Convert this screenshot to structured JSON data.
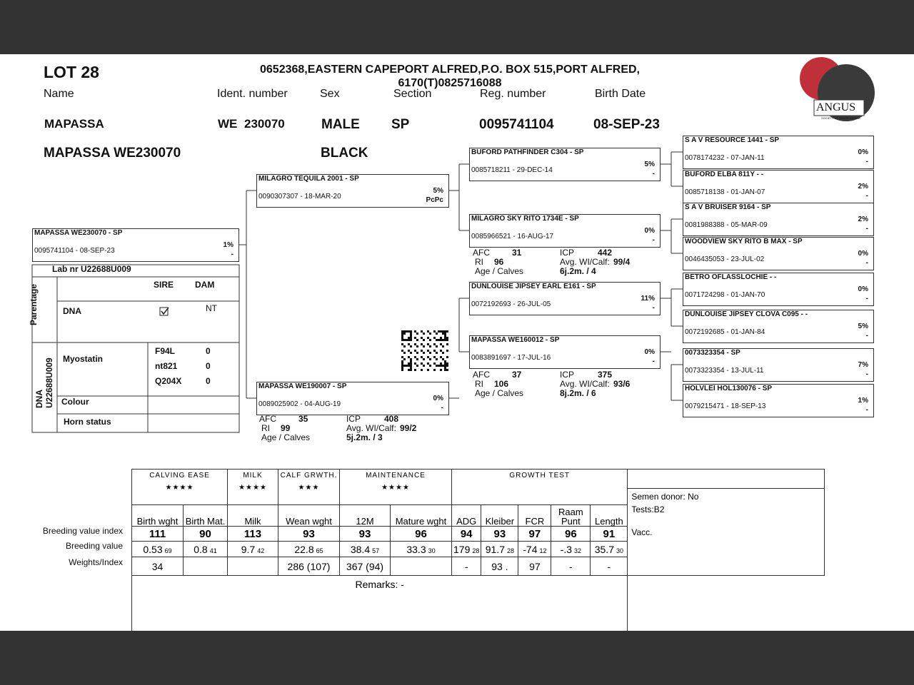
{
  "header": {
    "lot": "LOT 28",
    "address": "0652368,EASTERN CAPEPORT ALFRED,P.O. BOX 515,PORT ALFRED, 6170(T)0825716088",
    "labels": [
      "Name",
      "Ident. number",
      "Sex",
      "Section",
      "Reg. number",
      "Birth Date"
    ]
  },
  "animal": {
    "name": "MAPASSA",
    "ident_prefix": "WE",
    "ident": "230070",
    "sex": "MALE",
    "section": "SP",
    "reg": "0095741104",
    "birth": "08-SEP-23",
    "full_name": "MAPASSA WE230070",
    "colour": "BLACK"
  },
  "logo": {
    "text": "ANGUS",
    "sub": "SOCIETY OF SOUTH AFRICA"
  },
  "pedigree": {
    "boxes": [
      {
        "name": "MAPASSA WE230070 - SP",
        "reg": "0095741104 -  08-SEP-23",
        "pct": "1%",
        "flag": "-"
      },
      {
        "name": "MILAGRO TEQUILA 2001 - SP",
        "reg": "0090307307 - 18-MAR-20",
        "pct": "5%",
        "flag": "PcPc"
      },
      {
        "name": "MAPASSA WE190007 - SP",
        "reg": "0089025902 - 04-AUG-19",
        "pct": "0%",
        "flag": "-"
      },
      {
        "name": "BUFORD PATHFINDER C304 - SP",
        "reg": "0085718211 - 29-DEC-14",
        "pct": "5%",
        "flag": "-"
      },
      {
        "name": "MILAGRO SKY RITO 1734E - SP",
        "reg": "0085966521 - 16-AUG-17",
        "pct": "0%",
        "flag": "-"
      },
      {
        "name": "DUNLOUISE JIPSEY EARL E161 - SP",
        "reg": "0072192693 - 26-JUL-05",
        "pct": "11%",
        "flag": "-"
      },
      {
        "name": "MAPASSA WE160012 - SP",
        "reg": "0083891697 - 17-JUL-16",
        "pct": "0%",
        "flag": "-"
      },
      {
        "name": "S A V RESOURCE 1441 - SP",
        "reg": "0078174232 - 07-JAN-11",
        "pct": "0%",
        "flag": "-"
      },
      {
        "name": "BUFORD ELBA 811Y - -",
        "reg": "0085718138 - 01-JAN-07",
        "pct": "2%",
        "flag": "-"
      },
      {
        "name": "S A V BRUISER 9164 - SP",
        "reg": "0081988388 - 05-MAR-09",
        "pct": "2%",
        "flag": "-"
      },
      {
        "name": "WOODVIEW SKY RITO B MAX - SP",
        "reg": "0046435053 - 23-JUL-02",
        "pct": "0%",
        "flag": "-"
      },
      {
        "name": "BETRO OFLASSLOCHIE - -",
        "reg": "0071724298 - 01-JAN-70",
        "pct": "0%",
        "flag": "-"
      },
      {
        "name": "DUNLOUISE JIPSEY CLOVA C095 - -",
        "reg": "0072192685 - 01-JAN-84",
        "pct": "5%",
        "flag": "-"
      },
      {
        "name": "0073323354 - SP",
        "reg": "0073323354 - 13-JUL-11",
        "pct": "7%",
        "flag": "-"
      },
      {
        "name": "HOLVLEI HOL130076 - SP",
        "reg": "0079215471 - 18-SEP-13",
        "pct": "1%",
        "flag": "-"
      }
    ]
  },
  "stat_labels": {
    "afc": "AFC",
    "icp": "ICP",
    "ri": "RI",
    "avg": "Avg. WI/Calf:",
    "age": "Age / Calves"
  },
  "dam_stats": [
    {
      "afc": "35",
      "icp": "408",
      "ri": "99",
      "avg": "99/2",
      "age": "5j.2m. / 3"
    },
    {
      "afc": "31",
      "icp": "442",
      "ri": "96",
      "avg": "99/4",
      "age": "6j.2m. / 4"
    },
    {
      "afc": "37",
      "icp": "375",
      "ri": "106",
      "avg": "93/6",
      "age": "8j.2m. / 6"
    }
  ],
  "lab": {
    "lab_nr": "Lab nr  U22688U009",
    "parentage": "Parentage",
    "sire": "SIRE",
    "dam": "DAM",
    "dna": "DNA",
    "dam_result": "NT",
    "dna_side": "DNA U22688U009",
    "myostatin": "Myostatin",
    "markers": [
      {
        "name": "F94L",
        "value": "0"
      },
      {
        "name": "nt821",
        "value": "0"
      },
      {
        "name": "Q204X",
        "value": "0"
      }
    ],
    "colour": "Colour",
    "horn": "Horn status"
  },
  "table": {
    "groups": [
      {
        "name": "CALVING EASE",
        "stars": "★★★★",
        "span": 2
      },
      {
        "name": "MILK",
        "stars": "★★★★",
        "span": 1
      },
      {
        "name": "CALF GRWTH.",
        "stars": "★★★",
        "span": 1
      },
      {
        "name": "MAINTENANCE",
        "stars": "★★★★",
        "span": 2
      },
      {
        "name": "GROWTH TEST",
        "stars": null,
        "span": 5
      }
    ],
    "columns": [
      "Birth wght",
      "Birth Mat.",
      "Milk",
      "Wean wght",
      "12M",
      "Mature wght",
      "ADG",
      "Kleiber",
      "FCR",
      "Raam Punt",
      "Length"
    ],
    "index_label": "Breeding value index",
    "index": [
      "111",
      "90",
      "113",
      "93",
      "93",
      "96",
      "94",
      "93",
      "97",
      "96",
      "91"
    ],
    "bv_label": "Breeding value",
    "bv": [
      {
        "value": "0.53",
        "acc": "69"
      },
      {
        "value": "0.8",
        "acc": "41"
      },
      {
        "value": "9.7",
        "acc": "42"
      },
      {
        "value": "22.8",
        "acc": "65"
      },
      {
        "value": "38.4",
        "acc": "57"
      },
      {
        "value": "33.3",
        "acc": "30"
      },
      {
        "value": "179",
        "acc": "28"
      },
      {
        "value": "91.7",
        "acc": "28"
      },
      {
        "value": "-74",
        "acc": "12"
      },
      {
        "value": "-.3",
        "acc": "32"
      },
      {
        "value": "35.7",
        "acc": "30"
      }
    ],
    "weights_label": "Weights/Index",
    "weights": [
      "34",
      null,
      null,
      "286 (107)",
      "367 (94)",
      null,
      "-",
      "93 .",
      "97",
      "-",
      "-"
    ],
    "semen": "Semen donor: No",
    "tests": "Tests:B2",
    "vacc": "Vacc.",
    "remarks": "Remarks: -"
  }
}
